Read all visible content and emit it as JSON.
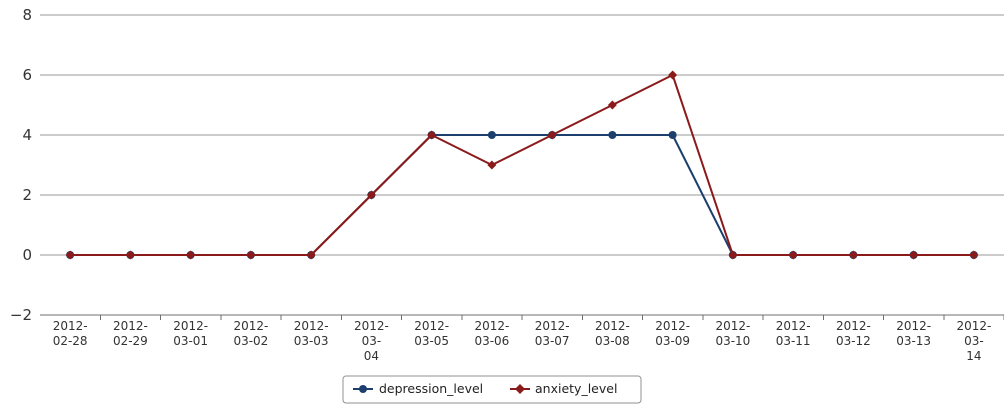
{
  "chart_data": {
    "type": "line",
    "categories": [
      "2012-02-28",
      "2012-02-29",
      "2012-03-01",
      "2012-03-02",
      "2012-03-03",
      "2012-03-04",
      "2012-03-05",
      "2012-03-06",
      "2012-03-07",
      "2012-03-08",
      "2012-03-09",
      "2012-03-10",
      "2012-03-11",
      "2012-03-12",
      "2012-03-13",
      "2012-03-14"
    ],
    "series": [
      {
        "name": "depression_level",
        "color": "#1c3f6e",
        "marker": "circle",
        "values": [
          0,
          0,
          0,
          0,
          0,
          2,
          4,
          4,
          4,
          4,
          4,
          0,
          0,
          0,
          0,
          0
        ]
      },
      {
        "name": "anxiety_level",
        "color": "#8b1a1a",
        "marker": "diamond",
        "values": [
          0,
          0,
          0,
          0,
          0,
          2,
          4,
          3,
          4,
          5,
          6,
          0,
          0,
          0,
          0,
          0
        ]
      }
    ],
    "ylim": [
      -2,
      8
    ],
    "yticks": [
      "−2",
      "0",
      "2",
      "4",
      "6",
      "8"
    ],
    "grid": true,
    "legend_position": "bottom-center",
    "title": "",
    "xlabel": "",
    "ylabel": ""
  }
}
